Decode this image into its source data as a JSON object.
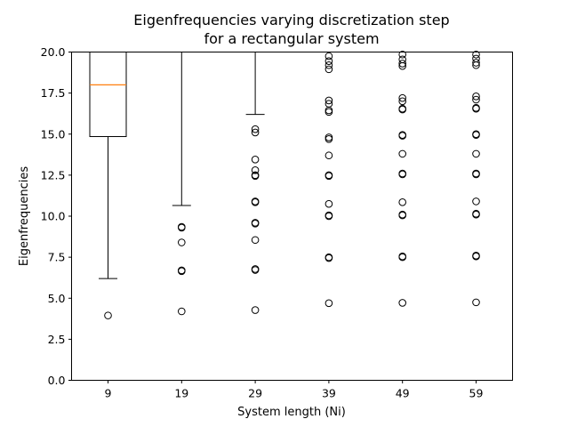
{
  "chart_data": {
    "type": "box",
    "title": "Eigenfrequencies varying discretization step\nfor a rectangular system",
    "xlabel": "System length (Ni)",
    "ylabel": "Eigenfrequencies",
    "ylim": [
      0,
      20
    ],
    "yticks": [
      0.0,
      2.5,
      5.0,
      7.5,
      10.0,
      12.5,
      15.0,
      17.5,
      20.0
    ],
    "ytick_labels": [
      "0.0",
      "2.5",
      "5.0",
      "7.5",
      "10.0",
      "12.5",
      "15.0",
      "17.5",
      "20.0"
    ],
    "categories": [
      "9",
      "19",
      "29",
      "39",
      "49",
      "59"
    ],
    "grid": false,
    "colors": {
      "box": "#000000",
      "median": "#ff7f0e",
      "flier": "#000000",
      "background": "#ffffff"
    },
    "boxes": [
      {
        "category": "9",
        "whisker_low": 6.2,
        "q1": 14.85,
        "median": 18.0,
        "q3": 20.0,
        "whisker_high": 20.0,
        "outliers": [
          3.95
        ]
      },
      {
        "category": "19",
        "whisker_low": 10.65,
        "q1": 20.0,
        "median": 20.0,
        "q3": 20.0,
        "whisker_high": 20.0,
        "outliers": [
          4.2,
          6.65,
          6.7,
          8.4,
          9.3,
          9.35
        ]
      },
      {
        "category": "29",
        "whisker_low": 16.2,
        "q1": 20.0,
        "median": 20.0,
        "q3": 20.0,
        "whisker_high": 20.0,
        "outliers": [
          4.28,
          6.72,
          6.78,
          8.55,
          9.55,
          9.6,
          10.85,
          10.9,
          12.45,
          12.5,
          12.8,
          13.45,
          15.1,
          15.3
        ]
      },
      {
        "category": "39",
        "whisker_low": 20.0,
        "q1": 20.0,
        "median": 20.0,
        "q3": 20.0,
        "whisker_high": 20.0,
        "outliers": [
          4.7,
          7.45,
          7.5,
          10.0,
          10.05,
          10.75,
          12.45,
          12.5,
          13.7,
          14.7,
          14.8,
          16.35,
          16.45,
          16.85,
          17.05,
          18.95,
          19.2,
          19.45,
          19.75
        ]
      },
      {
        "category": "49",
        "whisker_low": 20.0,
        "q1": 20.0,
        "median": 20.0,
        "q3": 20.0,
        "whisker_high": 20.0,
        "outliers": [
          4.72,
          7.5,
          7.55,
          10.05,
          10.1,
          10.85,
          12.55,
          12.6,
          13.8,
          14.9,
          14.95,
          16.5,
          16.55,
          17.0,
          17.2,
          19.15,
          19.3,
          19.55,
          19.85
        ]
      },
      {
        "category": "59",
        "whisker_low": 20.0,
        "q1": 20.0,
        "median": 20.0,
        "q3": 20.0,
        "whisker_high": 20.0,
        "outliers": [
          4.75,
          7.55,
          7.6,
          10.1,
          10.15,
          10.9,
          12.55,
          12.6,
          13.8,
          14.95,
          15.0,
          16.55,
          16.6,
          17.1,
          17.3,
          19.2,
          19.35,
          19.6,
          19.85
        ]
      }
    ]
  }
}
